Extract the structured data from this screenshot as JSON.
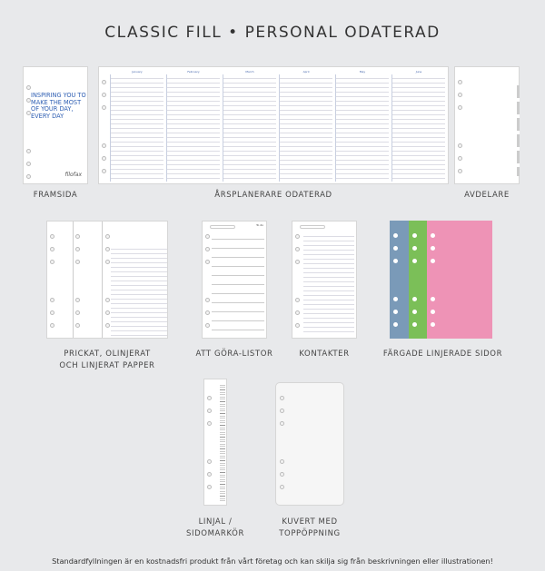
{
  "title": "CLASSIC FILL • PERSONAL ODATERAD",
  "items": {
    "framsida": {
      "label": "FRAMSIDA",
      "quote": "INSPIRING YOU TO MAKE THE MOST OF YOUR DAY, EVERY DAY",
      "brand": "filofax"
    },
    "arsplanerare": {
      "label": "ÅRSPLANERARE ODATERAD",
      "months": [
        "January",
        "February",
        "March",
        "April",
        "May",
        "June"
      ]
    },
    "avdelare": {
      "label": "AVDELARE"
    },
    "papper": {
      "label_line1": "PRICKAT, OLINJERAT",
      "label_line2": "OCH LINJERAT PAPPER"
    },
    "attgora": {
      "label": "ATT GÖRA-LISTOR",
      "heading": "To do"
    },
    "kontakter": {
      "label": "KONTAKTER"
    },
    "fargade": {
      "label": "FÄRGADE LINJERADE SIDOR",
      "colors": [
        "#7a9ab8",
        "#7bbf58",
        "#ee93b6"
      ]
    },
    "linjal": {
      "label_line1": "LINJAL /",
      "label_line2": "SIDOMARKÖR"
    },
    "kuvert": {
      "label_line1": "KUVERT MED",
      "label_line2": "TOPPÖPPNING"
    }
  },
  "footer": "Standardfyllningen är en kostnadsfri produkt från vårt företag och kan skilja sig från beskrivningen eller illustrationen!"
}
